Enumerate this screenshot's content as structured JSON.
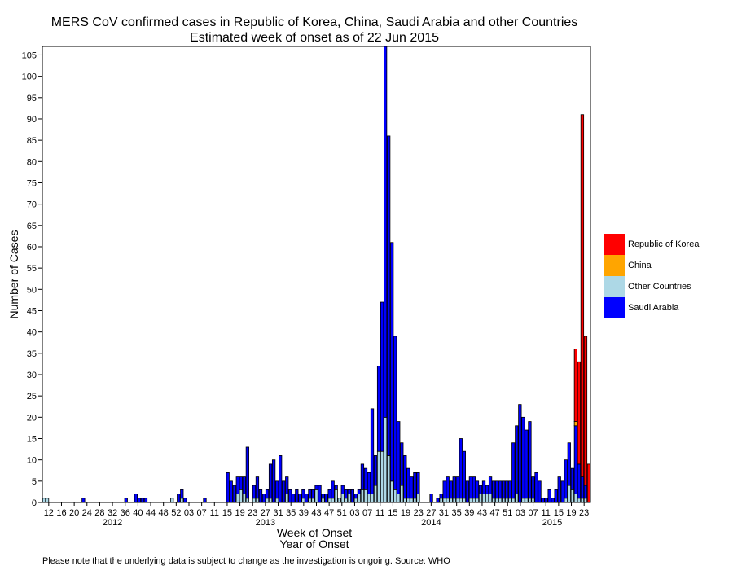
{
  "chart_data": {
    "type": "bar",
    "stacked": true,
    "title": "MERS CoV confirmed cases in Republic of Korea, China, Saudi Arabia and other Countries",
    "subtitle": "Estimated week of onset as of 22 Jun 2015",
    "xlabel": "Week of Onset",
    "xlabel2": "Year of Onset",
    "ylabel": "Number of Cases",
    "ylim": [
      0,
      107
    ],
    "yticks": [
      0,
      5,
      10,
      15,
      20,
      25,
      30,
      35,
      40,
      45,
      50,
      55,
      60,
      65,
      70,
      75,
      80,
      85,
      90,
      95,
      100,
      105
    ],
    "week_labels": [
      "12",
      "16",
      "20",
      "24",
      "28",
      "32",
      "36",
      "40",
      "44",
      "48",
      "52",
      "03",
      "07",
      "11",
      "15",
      "19",
      "23",
      "27",
      "31",
      "35",
      "39",
      "43",
      "47",
      "51",
      "03",
      "07",
      "11",
      "15",
      "19",
      "23",
      "27",
      "31",
      "35",
      "39",
      "43",
      "47",
      "51",
      "03",
      "07",
      "11",
      "15",
      "19",
      "23"
    ],
    "year_labels": [
      "2012",
      "2013",
      "2014",
      "2015"
    ],
    "legend": {
      "placement": "right",
      "entries": [
        {
          "name": "Republic of Korea",
          "color": "#ff0000"
        },
        {
          "name": "China",
          "color": "#ffa500"
        },
        {
          "name": "Other Countries",
          "color": "#add8e6"
        },
        {
          "name": "Saudi Arabia",
          "color": "#0000ff"
        }
      ]
    },
    "series": [
      {
        "name": "Saudi Arabia",
        "color": "#0000ff",
        "values": [
          0,
          0,
          0,
          0,
          0,
          0,
          0,
          0,
          0,
          0,
          0,
          0,
          1,
          0,
          0,
          0,
          0,
          0,
          0,
          0,
          0,
          0,
          0,
          0,
          0,
          1,
          0,
          0,
          2,
          1,
          1,
          1,
          0,
          0,
          0,
          0,
          0,
          0,
          0,
          0,
          0,
          2,
          2,
          1,
          0,
          0,
          0,
          0,
          0,
          1,
          0,
          0,
          0,
          0,
          0,
          0,
          7,
          5,
          4,
          4,
          3,
          4,
          12,
          0,
          3,
          5,
          3,
          2,
          2,
          8,
          10,
          4,
          11,
          5,
          4,
          3,
          2,
          3,
          2,
          2,
          2,
          2,
          2,
          1,
          4,
          1,
          2,
          2,
          4,
          1,
          0,
          2,
          2,
          1,
          3,
          1,
          1,
          6,
          5,
          5,
          20,
          7,
          20,
          35,
          87,
          75,
          56,
          36,
          17,
          10,
          10,
          7,
          5,
          6,
          5,
          0,
          0,
          0,
          2,
          0,
          1,
          1,
          4,
          5,
          4,
          5,
          5,
          14,
          11,
          5,
          5,
          5,
          4,
          2,
          3,
          2,
          4,
          4,
          4,
          4,
          4,
          4,
          4,
          13,
          16,
          23,
          19,
          16,
          18,
          5,
          7,
          5,
          1,
          1,
          3,
          1,
          3,
          6,
          5,
          9,
          10,
          5,
          16,
          8,
          5,
          3,
          0
        ]
      },
      {
        "name": "Other Countries",
        "color": "#add8e6",
        "values": [
          1,
          1,
          0,
          0,
          0,
          0,
          0,
          0,
          0,
          0,
          0,
          0,
          0,
          0,
          0,
          0,
          0,
          0,
          0,
          0,
          0,
          0,
          0,
          0,
          0,
          0,
          0,
          0,
          0,
          0,
          0,
          0,
          0,
          0,
          0,
          0,
          0,
          0,
          0,
          1,
          0,
          0,
          1,
          0,
          0,
          0,
          0,
          0,
          0,
          0,
          0,
          0,
          0,
          0,
          0,
          0,
          0,
          0,
          0,
          2,
          3,
          2,
          1,
          0,
          1,
          1,
          0,
          0,
          1,
          1,
          0,
          1,
          0,
          0,
          2,
          0,
          0,
          0,
          0,
          1,
          0,
          1,
          1,
          3,
          0,
          1,
          0,
          1,
          1,
          3,
          1,
          2,
          1,
          2,
          0,
          1,
          2,
          3,
          3,
          2,
          2,
          4,
          12,
          12,
          20,
          11,
          5,
          3,
          2,
          4,
          1,
          1,
          1,
          1,
          2,
          0,
          0,
          0,
          0,
          0,
          0,
          1,
          1,
          1,
          1,
          1,
          1,
          1,
          1,
          0,
          1,
          1,
          1,
          2,
          2,
          2,
          2,
          1,
          1,
          1,
          1,
          1,
          1,
          1,
          2,
          0,
          1,
          1,
          1,
          1,
          0,
          0,
          0,
          0,
          0,
          0,
          0,
          0,
          0,
          1,
          4,
          3,
          2,
          1,
          1,
          1,
          0
        ]
      },
      {
        "name": "China",
        "color": "#ffa500",
        "values": [
          0,
          0,
          0,
          0,
          0,
          0,
          0,
          0,
          0,
          0,
          0,
          0,
          0,
          0,
          0,
          0,
          0,
          0,
          0,
          0,
          0,
          0,
          0,
          0,
          0,
          0,
          0,
          0,
          0,
          0,
          0,
          0,
          0,
          0,
          0,
          0,
          0,
          0,
          0,
          0,
          0,
          0,
          0,
          0,
          0,
          0,
          0,
          0,
          0,
          0,
          0,
          0,
          0,
          0,
          0,
          0,
          0,
          0,
          0,
          0,
          0,
          0,
          0,
          0,
          0,
          0,
          0,
          0,
          0,
          0,
          0,
          0,
          0,
          0,
          0,
          0,
          0,
          0,
          0,
          0,
          0,
          0,
          0,
          0,
          0,
          0,
          0,
          0,
          0,
          0,
          0,
          0,
          0,
          0,
          0,
          0,
          0,
          0,
          0,
          0,
          0,
          0,
          0,
          0,
          0,
          0,
          0,
          0,
          0,
          0,
          0,
          0,
          0,
          0,
          0,
          0,
          0,
          0,
          0,
          0,
          0,
          0,
          0,
          0,
          0,
          0,
          0,
          0,
          0,
          0,
          0,
          0,
          0,
          0,
          0,
          0,
          0,
          0,
          0,
          0,
          0,
          0,
          0,
          0,
          0,
          0,
          0,
          0,
          0,
          0,
          0,
          0,
          0,
          0,
          0,
          0,
          0,
          0,
          0,
          0,
          0,
          0,
          1,
          0,
          0,
          0,
          0
        ]
      },
      {
        "name": "Republic of Korea",
        "color": "#ff0000",
        "values": [
          0,
          0,
          0,
          0,
          0,
          0,
          0,
          0,
          0,
          0,
          0,
          0,
          0,
          0,
          0,
          0,
          0,
          0,
          0,
          0,
          0,
          0,
          0,
          0,
          0,
          0,
          0,
          0,
          0,
          0,
          0,
          0,
          0,
          0,
          0,
          0,
          0,
          0,
          0,
          0,
          0,
          0,
          0,
          0,
          0,
          0,
          0,
          0,
          0,
          0,
          0,
          0,
          0,
          0,
          0,
          0,
          0,
          0,
          0,
          0,
          0,
          0,
          0,
          0,
          0,
          0,
          0,
          0,
          0,
          0,
          0,
          0,
          0,
          0,
          0,
          0,
          0,
          0,
          0,
          0,
          0,
          0,
          0,
          0,
          0,
          0,
          0,
          0,
          0,
          0,
          0,
          0,
          0,
          0,
          0,
          0,
          0,
          0,
          0,
          0,
          0,
          0,
          0,
          0,
          0,
          0,
          0,
          0,
          0,
          0,
          0,
          0,
          0,
          0,
          0,
          0,
          0,
          0,
          0,
          0,
          0,
          0,
          0,
          0,
          0,
          0,
          0,
          0,
          0,
          0,
          0,
          0,
          0,
          0,
          0,
          0,
          0,
          0,
          0,
          0,
          0,
          0,
          0,
          0,
          0,
          0,
          0,
          0,
          0,
          0,
          0,
          0,
          0,
          0,
          0,
          0,
          0,
          0,
          0,
          0,
          0,
          0,
          17,
          24,
          85,
          35,
          9
        ]
      }
    ]
  },
  "footnote": "Please note that the underlying data is subject to change as the investigation is ongoing. Source: WHO"
}
